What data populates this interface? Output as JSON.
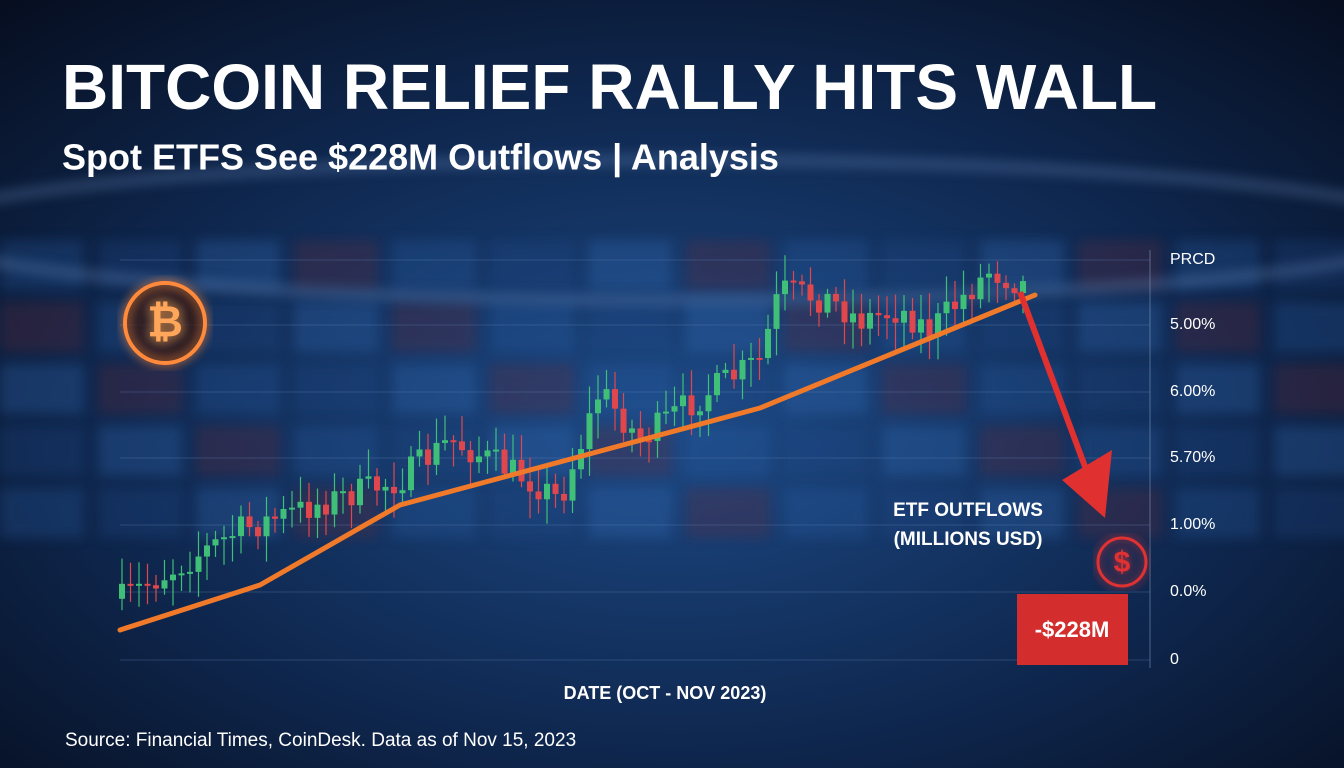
{
  "header": {
    "title": "BITCOIN RELIEF RALLY HITS WALL",
    "subtitle": "Spot ETFS See $228M Outflows | Analysis"
  },
  "axis": {
    "right_labels": [
      "PRCD",
      "5.00%",
      "6.00%",
      "5.70%",
      "1.00%",
      "0.0%",
      "0"
    ],
    "x_label": "DATE (OCT - NOV 2023)"
  },
  "annotation": {
    "lines": [
      "ETF OUTFLOWS",
      "(MILLIONS USD)"
    ],
    "value": "-$228M"
  },
  "footer": {
    "source": "Source: Financial Times, CoinDesk. Data as of Nov 15, 2023"
  }
}
